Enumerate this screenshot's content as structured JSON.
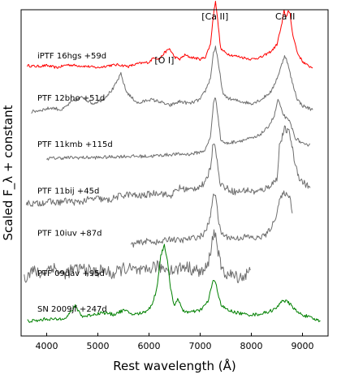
{
  "chart_data": {
    "type": "line",
    "title": "",
    "xlabel": "Rest wavelength (Å)",
    "ylabel": "Scaled F_λ + constant",
    "xlim": [
      3500,
      9500
    ],
    "xticks": [
      "4000",
      "5000",
      "6000",
      "7000",
      "8000",
      "9000"
    ],
    "xtick_values": [
      4000,
      5000,
      6000,
      7000,
      8000,
      9000
    ],
    "grid": false,
    "legend": "none",
    "line_labels": [
      {
        "text": "[O I]",
        "x": 6300
      },
      {
        "text": "[Ca II]",
        "x": 7291
      },
      {
        "text": "Ca II",
        "x": 8662
      }
    ],
    "series": [
      {
        "name": "iPTF 16hgs +59d",
        "color": "#ff0000",
        "offset": 6.0,
        "x": [
          3620,
          3800,
          4000,
          4200,
          4400,
          4600,
          4800,
          5000,
          5200,
          5400,
          5600,
          5800,
          6000,
          6100,
          6200,
          6300,
          6400,
          6500,
          6600,
          6700,
          6800,
          6900,
          7000,
          7100,
          7200,
          7260,
          7300,
          7340,
          7400,
          7500,
          7600,
          7800,
          8000,
          8200,
          8400,
          8500,
          8600,
          8640,
          8680,
          8720,
          8760,
          8800,
          8900,
          9000,
          9100,
          9200
        ],
        "y": [
          0.1,
          0.08,
          0.1,
          0.05,
          0.12,
          0.1,
          0.08,
          0.05,
          0.1,
          0.12,
          0.08,
          0.15,
          0.18,
          0.3,
          0.25,
          0.4,
          0.5,
          0.3,
          0.25,
          0.35,
          0.3,
          0.28,
          0.25,
          0.3,
          0.6,
          1.3,
          1.65,
          1.2,
          0.5,
          0.4,
          0.35,
          0.3,
          0.25,
          0.3,
          0.45,
          0.6,
          1.1,
          1.4,
          1.25,
          1.4,
          1.3,
          0.9,
          0.4,
          0.2,
          0.1,
          0.05
        ],
        "noise": 0.03
      },
      {
        "name": "PTF 12bho +51d",
        "color": "#6e6e6e",
        "offset": 5.0,
        "x": [
          3700,
          3900,
          4100,
          4300,
          4500,
          4700,
          4900,
          5100,
          5300,
          5450,
          5550,
          5650,
          5800,
          6000,
          6200,
          6400,
          6600,
          6800,
          7000,
          7100,
          7200,
          7260,
          7300,
          7360,
          7450,
          7600,
          7800,
          8000,
          8200,
          8400,
          8550,
          8650,
          8700,
          8800,
          8900,
          9000,
          9100,
          9200
        ],
        "y": [
          0.0,
          0.05,
          0.1,
          0.05,
          0.25,
          0.35,
          0.2,
          0.3,
          0.55,
          0.9,
          0.5,
          0.35,
          0.2,
          0.3,
          0.25,
          0.15,
          0.25,
          0.2,
          0.3,
          0.5,
          0.8,
          1.4,
          1.55,
          1.1,
          0.4,
          0.3,
          0.25,
          0.2,
          0.3,
          0.5,
          0.95,
          1.35,
          1.2,
          0.7,
          0.3,
          0.15,
          0.1,
          0.05
        ],
        "noise": 0.04
      },
      {
        "name": "PTF 11kmb +115d",
        "color": "#6e6e6e",
        "offset": 3.9,
        "x": [
          4000,
          4500,
          5000,
          5500,
          6000,
          6500,
          6800,
          7000,
          7100,
          7200,
          7260,
          7300,
          7350,
          7400,
          7500,
          7700,
          7900,
          8100,
          8300,
          8450,
          8520,
          8600,
          8680,
          8760,
          8850,
          8950,
          9050,
          9150
        ],
        "y": [
          0.0,
          0.02,
          0.02,
          0.05,
          0.05,
          0.1,
          0.1,
          0.15,
          0.2,
          0.5,
          1.3,
          1.45,
          1.0,
          0.45,
          0.35,
          0.4,
          0.45,
          0.5,
          0.7,
          1.0,
          1.4,
          1.1,
          0.95,
          0.85,
          0.5,
          0.4,
          0.3,
          0.35
        ],
        "noise": 0.04
      },
      {
        "name": "PTF 11bij +45d",
        "color": "#6e6e6e",
        "offset": 2.8,
        "x": [
          3600,
          3800,
          4000,
          4200,
          4400,
          4600,
          4800,
          5000,
          5200,
          5400,
          5600,
          5800,
          6000,
          6200,
          6400,
          6600,
          6800,
          7000,
          7100,
          7200,
          7260,
          7300,
          7350,
          7400,
          7500,
          7700,
          7900,
          8100,
          8300,
          8500,
          8550,
          8650,
          8750,
          8850,
          8950,
          9050,
          9150
        ],
        "y": [
          0.05,
          0.02,
          0.08,
          0.05,
          0.1,
          0.05,
          0.12,
          0.15,
          0.1,
          0.2,
          0.25,
          0.2,
          0.25,
          0.3,
          0.2,
          0.4,
          0.35,
          0.45,
          0.5,
          0.9,
          1.5,
          1.4,
          0.8,
          0.5,
          0.4,
          0.3,
          0.35,
          0.3,
          0.4,
          0.6,
          1.4,
          1.8,
          1.7,
          1.0,
          0.6,
          0.5,
          0.4
        ],
        "noise": 0.08
      },
      {
        "name": "PTF 10iuv +87d",
        "color": "#6e6e6e",
        "offset": 1.8,
        "x": [
          5650,
          5800,
          6000,
          6200,
          6400,
          6600,
          6800,
          7000,
          7100,
          7200,
          7260,
          7300,
          7350,
          7400,
          7500,
          7700,
          7900,
          8100,
          8300,
          8450,
          8550,
          8650,
          8700,
          8750,
          8800
        ],
        "y": [
          0.05,
          0.1,
          0.15,
          0.1,
          0.2,
          0.15,
          0.2,
          0.25,
          0.35,
          0.7,
          1.3,
          1.25,
          0.7,
          0.35,
          0.25,
          0.2,
          0.25,
          0.2,
          0.3,
          0.6,
          1.1,
          1.3,
          1.2,
          1.25,
          0.8
        ],
        "noise": 0.07
      },
      {
        "name": "PTF 09dav +95d",
        "color": "#6e6e6e",
        "offset": 0.85,
        "x": [
          3560,
          3700,
          3900,
          4100,
          4300,
          4500,
          4700,
          4900,
          5100,
          5300,
          5500,
          5700,
          5900,
          6100,
          6300,
          6500,
          6700,
          6900,
          7050,
          7150,
          7220,
          7270,
          7320,
          7380,
          7450,
          7550,
          7700,
          7850,
          7980
        ],
        "y": [
          0.2,
          0.4,
          0.3,
          0.5,
          0.3,
          0.4,
          0.45,
          0.35,
          0.4,
          0.3,
          0.45,
          0.4,
          0.35,
          0.5,
          0.45,
          0.4,
          0.5,
          0.4,
          0.35,
          0.5,
          1.0,
          1.3,
          1.15,
          0.6,
          0.35,
          0.3,
          0.25,
          0.25,
          0.4
        ],
        "noise": 0.15
      },
      {
        "name": "SN 2009jf +247d",
        "color": "#008000",
        "offset": 0.0,
        "x": [
          3620,
          3800,
          4000,
          4200,
          4400,
          4560,
          4700,
          4900,
          5100,
          5300,
          5500,
          5700,
          5900,
          6050,
          6150,
          6230,
          6300,
          6360,
          6420,
          6500,
          6560,
          6650,
          6800,
          7000,
          7150,
          7250,
          7300,
          7350,
          7420,
          7550,
          7700,
          7900,
          8100,
          8300,
          8500,
          8600,
          8700,
          8800,
          8900,
          9000,
          9200,
          9350
        ],
        "y": [
          0.05,
          0.05,
          0.1,
          0.08,
          0.15,
          0.4,
          0.15,
          0.2,
          0.25,
          0.2,
          0.3,
          0.2,
          0.25,
          0.4,
          0.8,
          1.6,
          1.85,
          1.5,
          0.8,
          0.4,
          0.6,
          0.3,
          0.25,
          0.3,
          0.5,
          1.0,
          0.95,
          0.7,
          0.4,
          0.3,
          0.25,
          0.2,
          0.2,
          0.25,
          0.35,
          0.55,
          0.5,
          0.4,
          0.25,
          0.2,
          0.1,
          0.05
        ],
        "noise": 0.04
      }
    ]
  }
}
